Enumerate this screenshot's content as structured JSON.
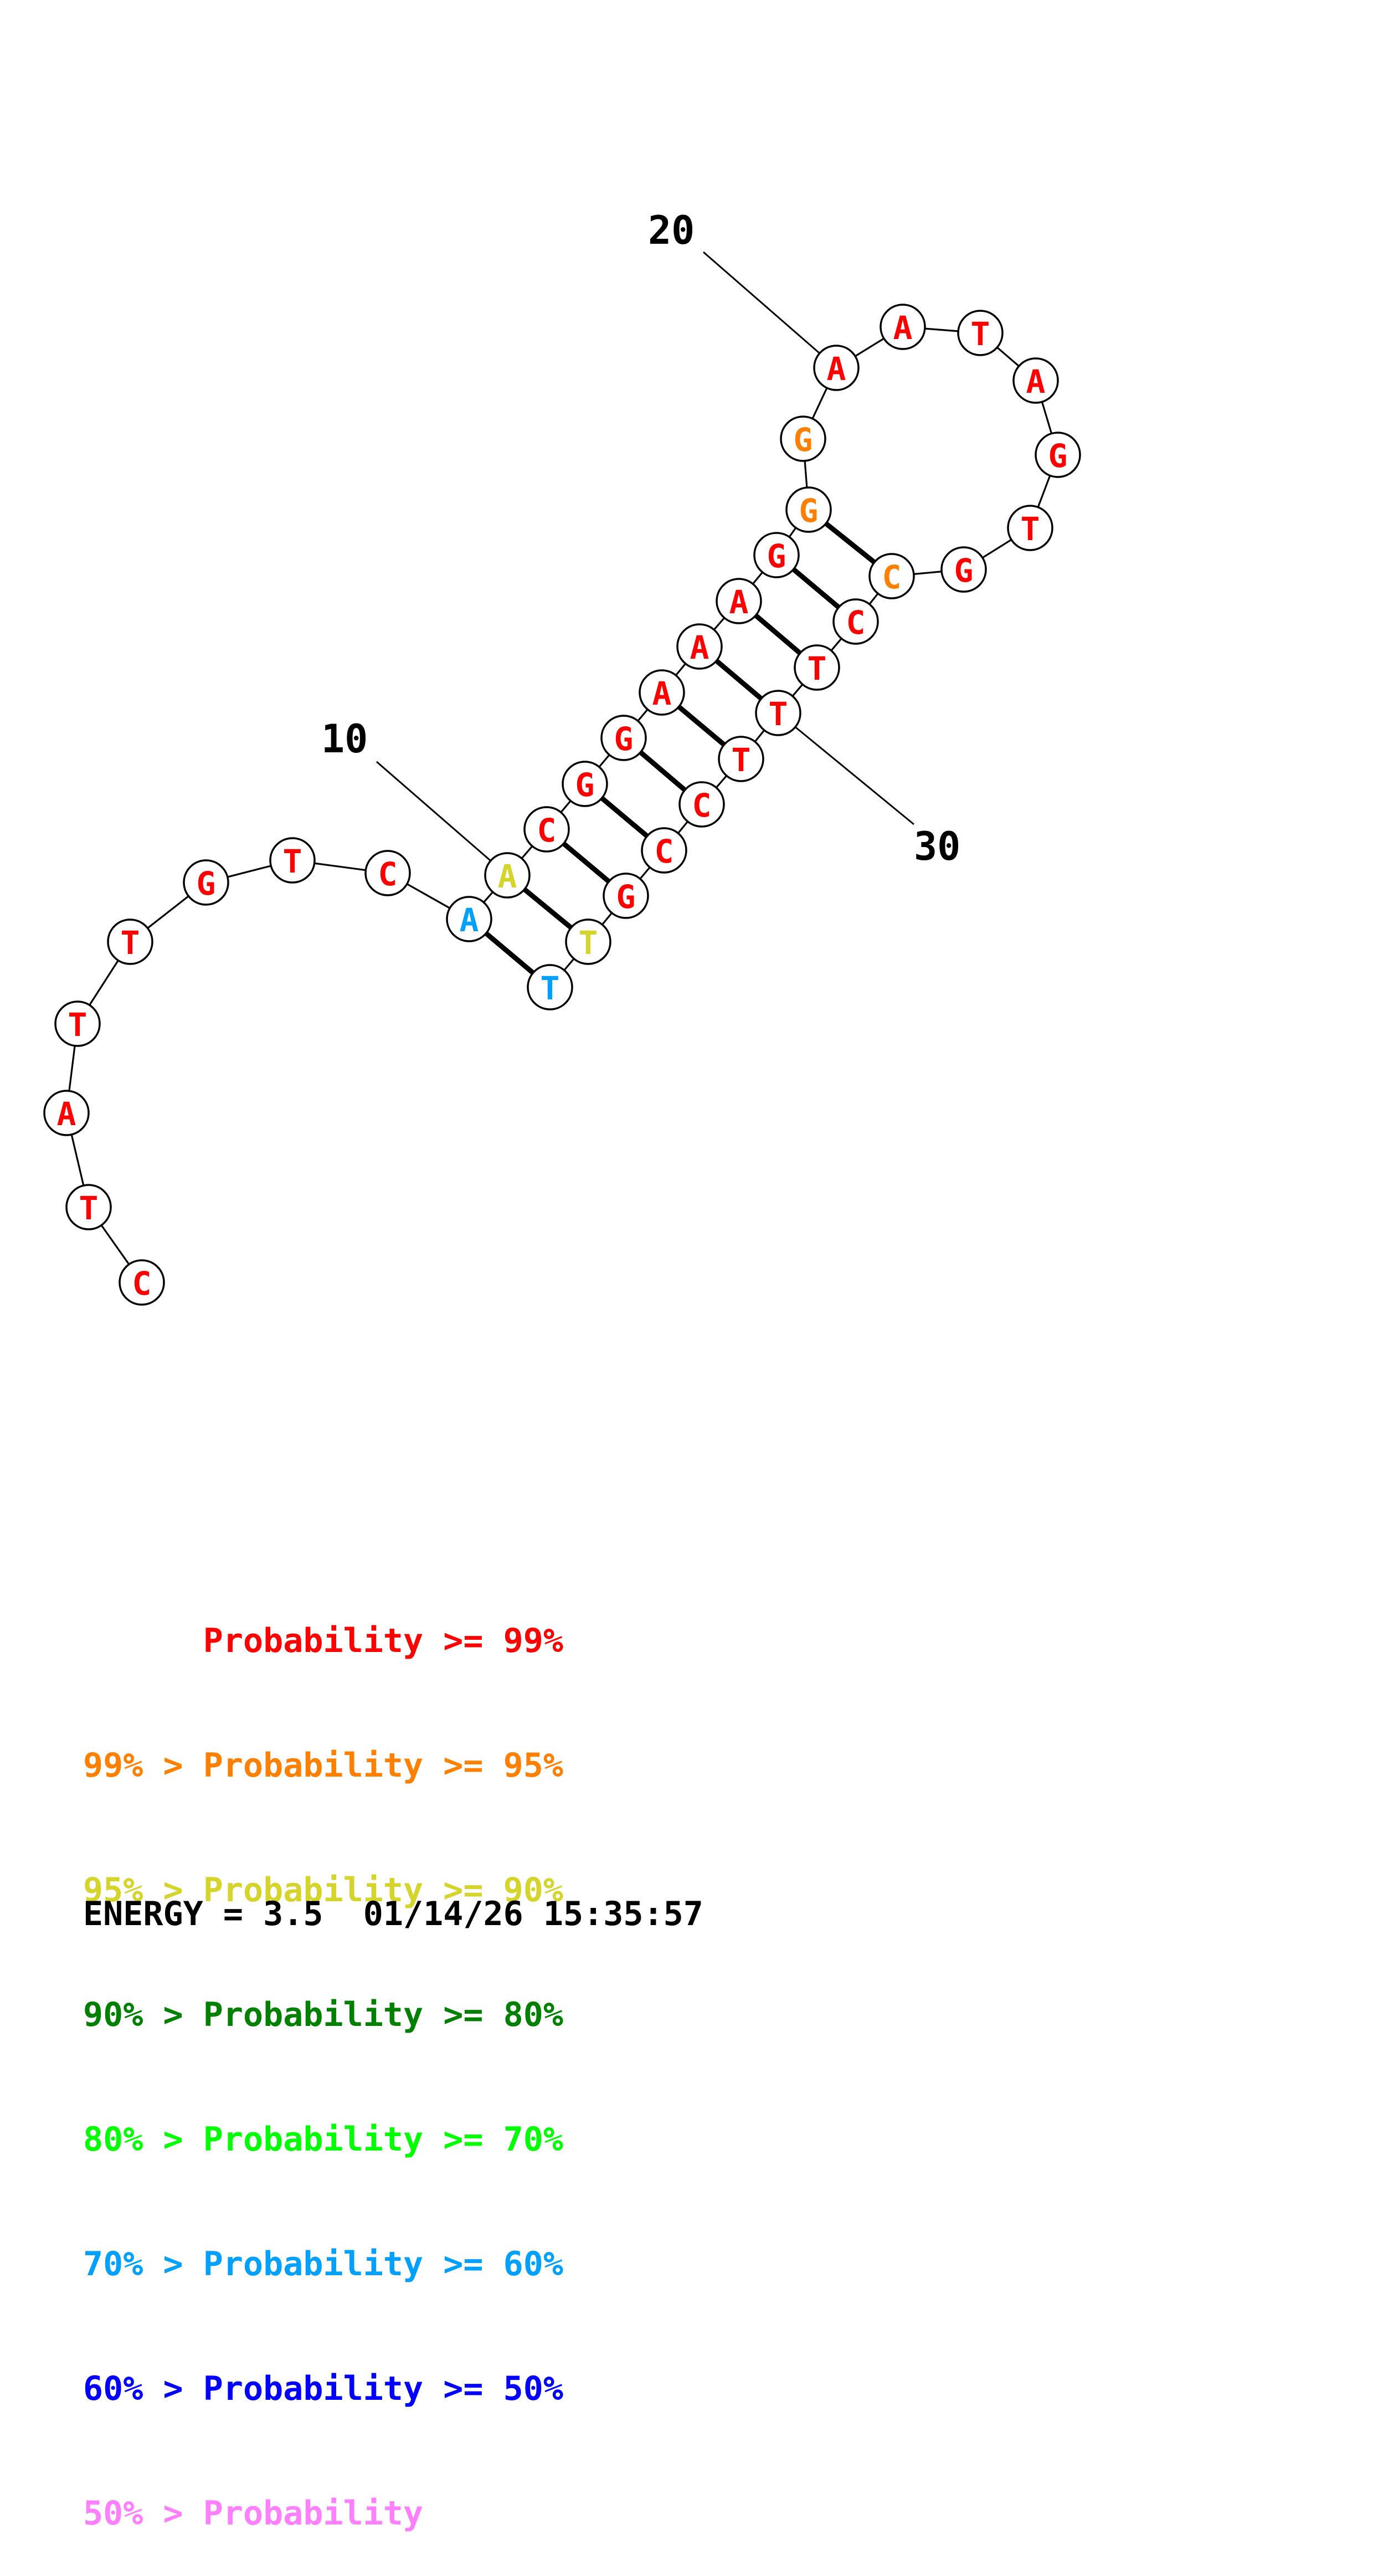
{
  "structure": {
    "nucleotides": [
      {
        "n": 1,
        "base": "C",
        "level": "p99"
      },
      {
        "n": 2,
        "base": "T",
        "level": "p99"
      },
      {
        "n": 3,
        "base": "A",
        "level": "p99"
      },
      {
        "n": 4,
        "base": "T",
        "level": "p99"
      },
      {
        "n": 5,
        "base": "T",
        "level": "p99"
      },
      {
        "n": 6,
        "base": "G",
        "level": "p99"
      },
      {
        "n": 7,
        "base": "T",
        "level": "p99"
      },
      {
        "n": 8,
        "base": "C",
        "level": "p99"
      },
      {
        "n": 9,
        "base": "A",
        "level": "p60"
      },
      {
        "n": 10,
        "base": "A",
        "level": "p90"
      },
      {
        "n": 11,
        "base": "C",
        "level": "p99"
      },
      {
        "n": 12,
        "base": "G",
        "level": "p99"
      },
      {
        "n": 13,
        "base": "G",
        "level": "p99"
      },
      {
        "n": 14,
        "base": "A",
        "level": "p99"
      },
      {
        "n": 15,
        "base": "A",
        "level": "p99"
      },
      {
        "n": 16,
        "base": "A",
        "level": "p99"
      },
      {
        "n": 17,
        "base": "G",
        "level": "p99"
      },
      {
        "n": 18,
        "base": "G",
        "level": "p95"
      },
      {
        "n": 19,
        "base": "G",
        "level": "p95"
      },
      {
        "n": 20,
        "base": "A",
        "level": "p99"
      },
      {
        "n": 21,
        "base": "A",
        "level": "p99"
      },
      {
        "n": 22,
        "base": "T",
        "level": "p99"
      },
      {
        "n": 23,
        "base": "A",
        "level": "p99"
      },
      {
        "n": 24,
        "base": "G",
        "level": "p99"
      },
      {
        "n": 25,
        "base": "T",
        "level": "p99"
      },
      {
        "n": 26,
        "base": "G",
        "level": "p99"
      },
      {
        "n": 27,
        "base": "C",
        "level": "p95"
      },
      {
        "n": 28,
        "base": "C",
        "level": "p99"
      },
      {
        "n": 29,
        "base": "T",
        "level": "p99"
      },
      {
        "n": 30,
        "base": "T",
        "level": "p99"
      },
      {
        "n": 31,
        "base": "T",
        "level": "p99"
      },
      {
        "n": 32,
        "base": "C",
        "level": "p99"
      },
      {
        "n": 33,
        "base": "C",
        "level": "p99"
      },
      {
        "n": 34,
        "base": "G",
        "level": "p99"
      },
      {
        "n": 35,
        "base": "T",
        "level": "p90"
      },
      {
        "n": 36,
        "base": "T",
        "level": "p60"
      }
    ],
    "pairs": [
      [
        9,
        36
      ],
      [
        10,
        35
      ],
      [
        11,
        34
      ],
      [
        12,
        33
      ],
      [
        13,
        32
      ],
      [
        14,
        31
      ],
      [
        15,
        30
      ],
      [
        16,
        29
      ],
      [
        17,
        28
      ],
      [
        18,
        27
      ]
    ],
    "position_labels": [
      {
        "text": "10",
        "nt": 10
      },
      {
        "text": "20",
        "nt": 20
      },
      {
        "text": "30",
        "nt": 30
      }
    ]
  },
  "colors": {
    "p99": "#ff0000",
    "p95": "#ff8000",
    "p90": "#d4d42a",
    "p80": "#008000",
    "p70": "#00ff00",
    "p60": "#00a0ff",
    "p50": "#0000ff",
    "low": "#ff80ff"
  },
  "legend": [
    {
      "text": "      Probability >= 99%",
      "level": "p99"
    },
    {
      "text": "99% > Probability >= 95%",
      "level": "p95"
    },
    {
      "text": "95% > Probability >= 90%",
      "level": "p90"
    },
    {
      "text": "90% > Probability >= 80%",
      "level": "p80"
    },
    {
      "text": "80% > Probability >= 70%",
      "level": "p70"
    },
    {
      "text": "70% > Probability >= 60%",
      "level": "p60"
    },
    {
      "text": "60% > Probability >= 50%",
      "level": "p50"
    },
    {
      "text": "50% > Probability",
      "level": "low"
    }
  ],
  "footer": {
    "energy": "ENERGY = 3.5  01/14/26 15:35:57"
  }
}
